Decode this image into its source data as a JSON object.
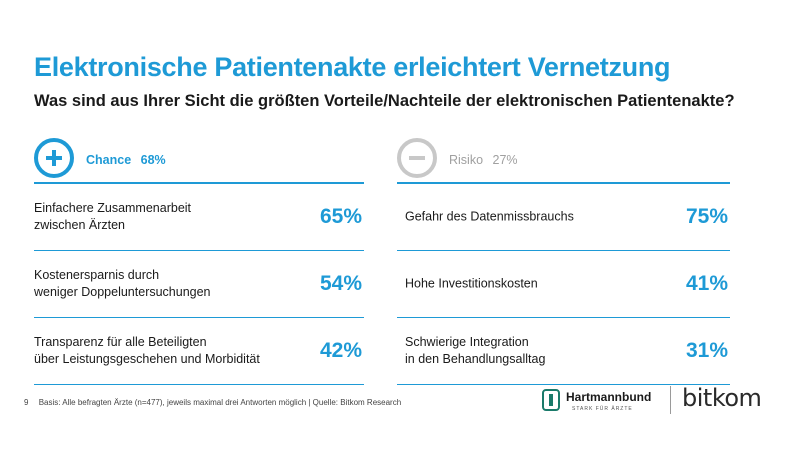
{
  "header": {
    "title": "Elektronische Patientenakte erleichtert Vernetzung",
    "subtitle": "Was sind aus Ihrer Sicht die größten Vorteile/Nachteile der elektronischen Patientenakte?"
  },
  "chart_data": [
    {
      "type": "table",
      "title": "Chance",
      "total": "68%",
      "icon": "plus-icon",
      "color": "#1e9ad6",
      "categories": [
        "Einfachere Zusammenarbeit\nzwischen Ärzten",
        "Kostenersparnis durch\nweniger Doppeluntersuchungen",
        "Transparenz für alle Beteiligten\nüber Leistungsgeschehen und Morbidität"
      ],
      "values": [
        65,
        54,
        42
      ],
      "labels": [
        "65%",
        "54%",
        "42%"
      ]
    },
    {
      "type": "table",
      "title": "Risiko",
      "total": "27%",
      "icon": "minus-icon",
      "color": "#a0a0a0",
      "categories": [
        "Gefahr des Datenmissbrauchs",
        "Hohe Investitionskosten",
        "Schwierige Integration\nin den Behandlungsalltag"
      ],
      "values": [
        75,
        41,
        31
      ],
      "labels": [
        "75%",
        "41%",
        "31%"
      ]
    }
  ],
  "footer": {
    "page": "9",
    "note": "Basis: Alle befragten Ärzte (n=477), jeweils maximal drei Antworten möglich | Quelle: Bitkom Research"
  },
  "logos": {
    "hartmannbund": "Hartmannbund",
    "hartmannbund_claim": "STARK FÜR ÄRZTE",
    "bitkom": "bitkom"
  }
}
